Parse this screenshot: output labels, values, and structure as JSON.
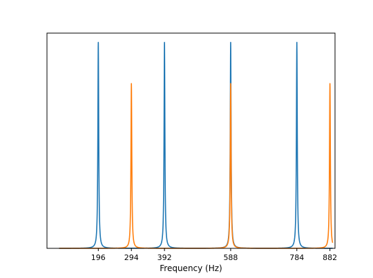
{
  "chart_data": {
    "type": "line",
    "title": "",
    "xlabel": "Frequency (Hz)",
    "ylabel": "",
    "xlim": [
      44,
      897
    ],
    "ylim": [
      0,
      1.045
    ],
    "grid": false,
    "legend": "none",
    "xticks": [
      196,
      294,
      392,
      588,
      784,
      882
    ],
    "yticks": [],
    "series": [
      {
        "color": "#1f77b4",
        "peaks": [
          196,
          392,
          588,
          784
        ],
        "peak_height": 1.0,
        "halfwidth": 1.5,
        "baseline": 0.0,
        "x_range": [
          80,
          890
        ]
      },
      {
        "color": "#ff7f0e",
        "peaks": [
          294,
          588,
          882
        ],
        "peak_height": 0.8,
        "halfwidth": 1.5,
        "baseline": 0.0,
        "x_range": [
          80,
          890
        ]
      }
    ]
  },
  "axis": {
    "xlabel": "Frequency (Hz)",
    "xtick_labels": [
      "196",
      "294",
      "392",
      "588",
      "784",
      "882"
    ]
  }
}
